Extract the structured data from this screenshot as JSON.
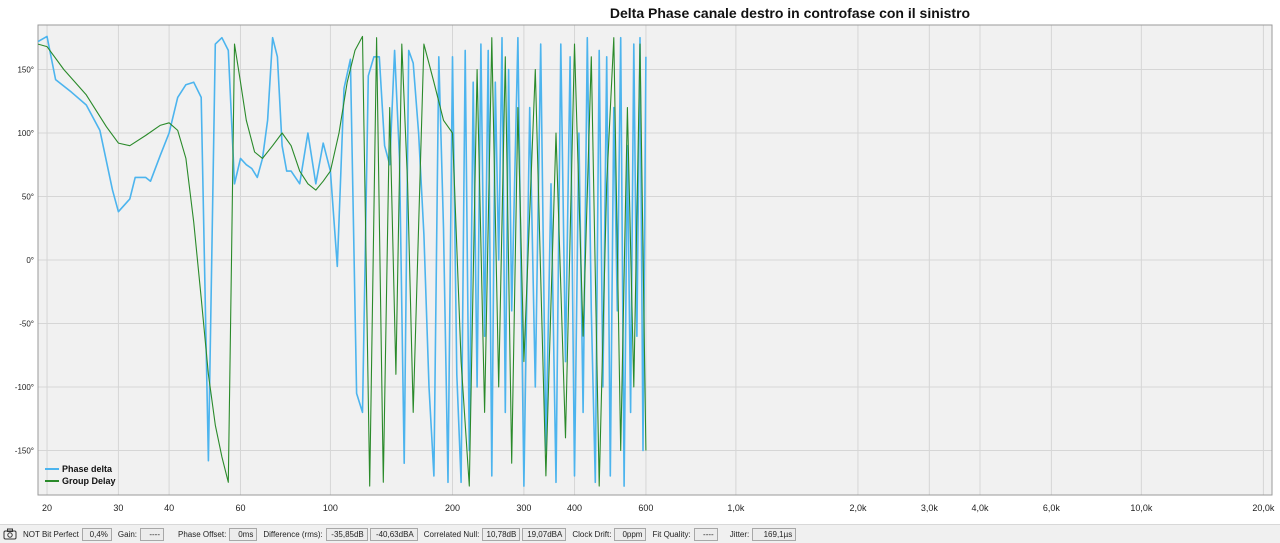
{
  "chart_data": {
    "type": "line",
    "title": "Delta Phase canale destro in controfase con il sinistro",
    "xscale": "log",
    "xlim": [
      19,
      21000
    ],
    "ylim": [
      -185,
      185
    ],
    "grid": true,
    "legend_position": "bottom-left",
    "x_ticks": [
      {
        "value": 20,
        "label": "20"
      },
      {
        "value": 30,
        "label": "30"
      },
      {
        "value": 40,
        "label": "40"
      },
      {
        "value": 60,
        "label": "60"
      },
      {
        "value": 100,
        "label": "100"
      },
      {
        "value": 200,
        "label": "200"
      },
      {
        "value": 300,
        "label": "300"
      },
      {
        "value": 400,
        "label": "400"
      },
      {
        "value": 600,
        "label": "600"
      },
      {
        "value": 1000,
        "label": "1,0k"
      },
      {
        "value": 2000,
        "label": "2,0k"
      },
      {
        "value": 3000,
        "label": "3,0k"
      },
      {
        "value": 4000,
        "label": "4,0k"
      },
      {
        "value": 6000,
        "label": "6,0k"
      },
      {
        "value": 10000,
        "label": "10,0k"
      },
      {
        "value": 20000,
        "label": "20,0k"
      }
    ],
    "y_ticks": [
      {
        "value": 150,
        "label": "150°"
      },
      {
        "value": 100,
        "label": "100°"
      },
      {
        "value": 50,
        "label": "50°"
      },
      {
        "value": 0,
        "label": "0°"
      },
      {
        "value": -50,
        "label": "-50°"
      },
      {
        "value": -100,
        "label": "-100°"
      },
      {
        "value": -150,
        "label": "-150°"
      }
    ],
    "series": [
      {
        "name": "Phase delta",
        "color": "#4cb4ee",
        "x": [
          19,
          20,
          21,
          23,
          25,
          27,
          29,
          30,
          32,
          33,
          35,
          36,
          38,
          40,
          42,
          44,
          46,
          48,
          50,
          52,
          54,
          56,
          58,
          60,
          62,
          64,
          66,
          68,
          70,
          72,
          74,
          76,
          78,
          80,
          84,
          88,
          92,
          96,
          100,
          104,
          108,
          112,
          116,
          120,
          124,
          128,
          132,
          136,
          140,
          144,
          148,
          152,
          156,
          160,
          165,
          170,
          175,
          180,
          185,
          190,
          195,
          200,
          205,
          210,
          215,
          220,
          225,
          230,
          235,
          240,
          245,
          250,
          255,
          260,
          265,
          270,
          275,
          280,
          290,
          300,
          310,
          320,
          330,
          340,
          350,
          360,
          370,
          380,
          390,
          400,
          410,
          420,
          430,
          440,
          450,
          460,
          470,
          480,
          490,
          500,
          510,
          520,
          530,
          540,
          550,
          560,
          570,
          580,
          590,
          600
        ],
        "values": [
          172,
          176,
          142,
          132,
          122,
          102,
          55,
          38,
          48,
          65,
          65,
          62,
          82,
          100,
          128,
          138,
          140,
          128,
          -158,
          170,
          175,
          165,
          60,
          80,
          75,
          72,
          65,
          80,
          110,
          175,
          160,
          90,
          70,
          70,
          60,
          100,
          60,
          92,
          70,
          -5,
          135,
          158,
          -105,
          -120,
          145,
          160,
          160,
          90,
          75,
          165,
          80,
          -160,
          165,
          155,
          100,
          20,
          -100,
          -170,
          160,
          25,
          -175,
          160,
          -90,
          -175,
          165,
          -150,
          140,
          -100,
          170,
          -60,
          165,
          -170,
          140,
          0,
          175,
          -120,
          150,
          -40,
          175,
          -178,
          120,
          -100,
          170,
          -150,
          60,
          -175,
          170,
          -80,
          160,
          -170,
          100,
          -120,
          175,
          -40,
          -175,
          165,
          -100,
          160,
          -170,
          120,
          -40,
          175,
          -178,
          90,
          -120,
          170,
          -60,
          175,
          -150,
          160
        ]
      },
      {
        "name": "Group Delay",
        "color": "#2a8a2a",
        "x": [
          19,
          20,
          22,
          25,
          28,
          30,
          32,
          35,
          38,
          40,
          42,
          44,
          46,
          48,
          50,
          52,
          54,
          56,
          57,
          58,
          60,
          62,
          65,
          68,
          72,
          76,
          80,
          84,
          88,
          92,
          96,
          100,
          105,
          110,
          115,
          120,
          125,
          130,
          135,
          140,
          145,
          150,
          155,
          160,
          170,
          180,
          190,
          200,
          210,
          220,
          230,
          240,
          250,
          260,
          270,
          280,
          290,
          300,
          320,
          340,
          360,
          380,
          400,
          420,
          440,
          460,
          480,
          500,
          520,
          540,
          560,
          580,
          600
        ],
        "values": [
          170,
          168,
          150,
          130,
          105,
          92,
          90,
          98,
          106,
          108,
          102,
          80,
          30,
          -30,
          -90,
          -130,
          -155,
          -175,
          0,
          170,
          140,
          110,
          85,
          80,
          90,
          100,
          90,
          70,
          60,
          55,
          62,
          70,
          100,
          140,
          165,
          176,
          -178,
          175,
          -175,
          120,
          -90,
          170,
          60,
          -120,
          170,
          140,
          110,
          100,
          -80,
          -178,
          150,
          -120,
          175,
          -100,
          160,
          -160,
          120,
          -80,
          150,
          -170,
          100,
          -140,
          170,
          -60,
          160,
          -178,
          60,
          175,
          -150,
          120,
          -100,
          170,
          -150
        ]
      }
    ]
  },
  "status": {
    "bit_perfect_label": "NOT Bit Perfect",
    "bit_perfect_value": "0,4%",
    "gain_label": "Gain:",
    "gain_value": "----",
    "phase_offset_label": "Phase Offset:",
    "phase_offset_value": "0ms",
    "difference_label": "Difference (rms):",
    "difference_value1": "-35,85dB",
    "difference_value2": "-40,63dBA",
    "correlated_null_label": "Correlated Null:",
    "correlated_null_value1": "10,78dB",
    "correlated_null_value2": "19,07dBA",
    "clock_drift_label": "Clock Drift:",
    "clock_drift_value": "0ppm",
    "fit_quality_label": "Fit Quality:",
    "fit_quality_value": "----",
    "jitter_label": "Jitter:",
    "jitter_value": "169,1µs",
    "camera_icon": "camera-icon"
  }
}
